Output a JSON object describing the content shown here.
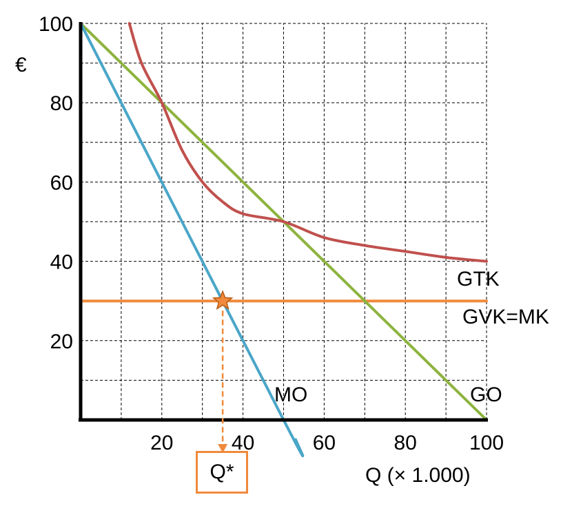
{
  "chart_data": {
    "type": "line",
    "y_unit_label": "€",
    "xlabel": "Q (× 1.000)",
    "xlim": [
      0,
      100
    ],
    "ylim": [
      0,
      100
    ],
    "x_ticks": [
      20,
      40,
      60,
      80,
      100
    ],
    "y_ticks": [
      20,
      40,
      60,
      80,
      100
    ],
    "grid": true,
    "series": [
      {
        "name": "GO",
        "color": "#8db33e",
        "points": [
          [
            0,
            100
          ],
          [
            100,
            0
          ]
        ]
      },
      {
        "name": "MO",
        "color": "#4aa6c8",
        "points": [
          [
            0,
            100
          ],
          [
            50,
            0
          ],
          [
            53,
            -5
          ]
        ]
      },
      {
        "name": "GTK",
        "color": "#c0504d",
        "points": [
          [
            12,
            100
          ],
          [
            15,
            90
          ],
          [
            20,
            80
          ],
          [
            25,
            68
          ],
          [
            30,
            60
          ],
          [
            35,
            55
          ],
          [
            40,
            52
          ],
          [
            50,
            50
          ],
          [
            60,
            46
          ],
          [
            70,
            44
          ],
          [
            80,
            42.5
          ],
          [
            90,
            41
          ],
          [
            100,
            40
          ]
        ]
      },
      {
        "name": "GVK=MK",
        "color": "#f08a3c",
        "points": [
          [
            0,
            30
          ],
          [
            100,
            30
          ]
        ]
      }
    ],
    "optimum": {
      "label": "Q*",
      "x": 35,
      "y": 30
    }
  }
}
